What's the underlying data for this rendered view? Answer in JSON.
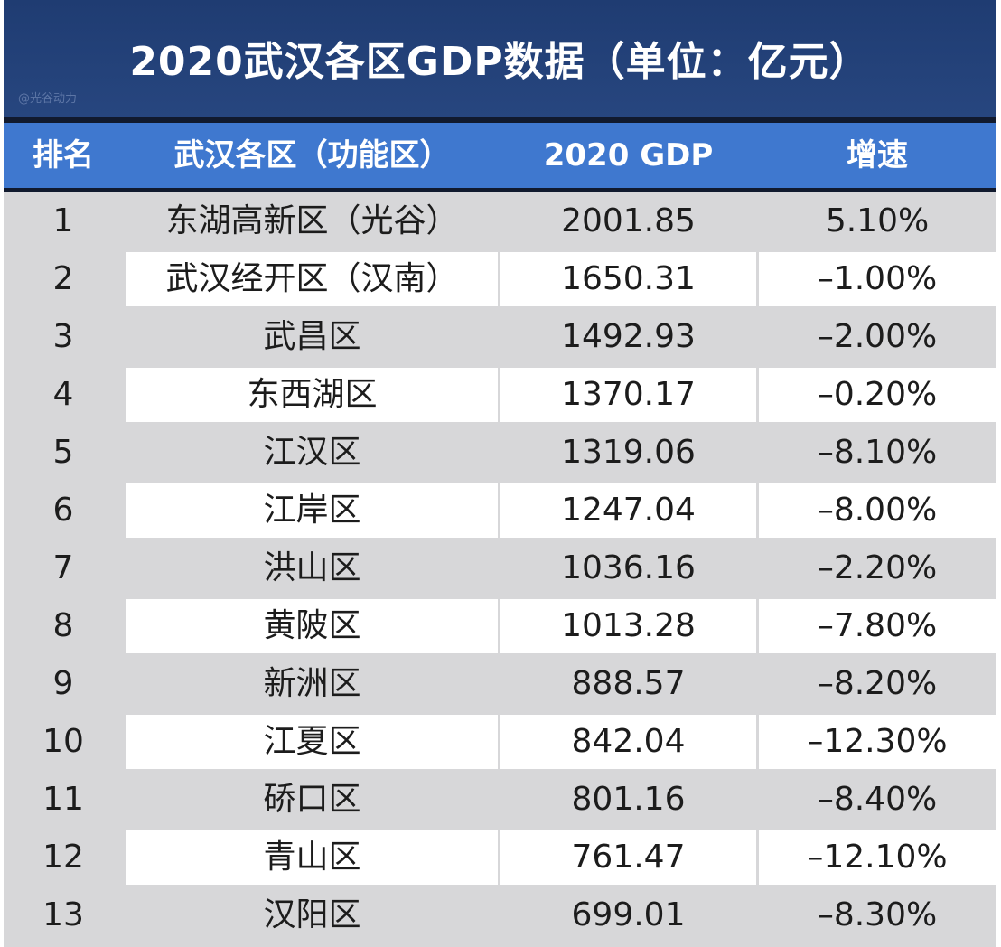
{
  "title": "2020武汉各区GDP数据（单位：亿元）",
  "watermark": "@光谷动力",
  "headers": {
    "rank": "排名",
    "district": "武汉各区（功能区）",
    "gdp": "2020 GDP",
    "growth": "增速"
  },
  "rows": [
    {
      "rank": "1",
      "district": "东湖高新区（光谷）",
      "gdp": "2001.85",
      "growth": "5.10%"
    },
    {
      "rank": "2",
      "district": "武汉经开区（汉南）",
      "gdp": "1650.31",
      "growth": "–1.00%"
    },
    {
      "rank": "3",
      "district": "武昌区",
      "gdp": "1492.93",
      "growth": "–2.00%"
    },
    {
      "rank": "4",
      "district": "东西湖区",
      "gdp": "1370.17",
      "growth": "–0.20%"
    },
    {
      "rank": "5",
      "district": "江汉区",
      "gdp": "1319.06",
      "growth": "–8.10%"
    },
    {
      "rank": "6",
      "district": "江岸区",
      "gdp": "1247.04",
      "growth": "–8.00%"
    },
    {
      "rank": "7",
      "district": "洪山区",
      "gdp": "1036.16",
      "growth": "–2.20%"
    },
    {
      "rank": "8",
      "district": "黄陂区",
      "gdp": "1013.28",
      "growth": "–7.80%"
    },
    {
      "rank": "9",
      "district": "新洲区",
      "gdp": "888.57",
      "growth": "–8.20%"
    },
    {
      "rank": "10",
      "district": "江夏区",
      "gdp": "842.04",
      "growth": "–12.30%"
    },
    {
      "rank": "11",
      "district": "硚口区",
      "gdp": "801.16",
      "growth": "–8.40%"
    },
    {
      "rank": "12",
      "district": "青山区",
      "gdp": "761.47",
      "growth": "–12.10%"
    },
    {
      "rank": "13",
      "district": "汉阳区",
      "gdp": "699.01",
      "growth": "–8.30%"
    }
  ],
  "colors": {
    "title_bg": "#1f3c72",
    "header_bg": "#3f78cf",
    "row_gray": "#d7d7d9",
    "row_white": "#ffffff"
  }
}
